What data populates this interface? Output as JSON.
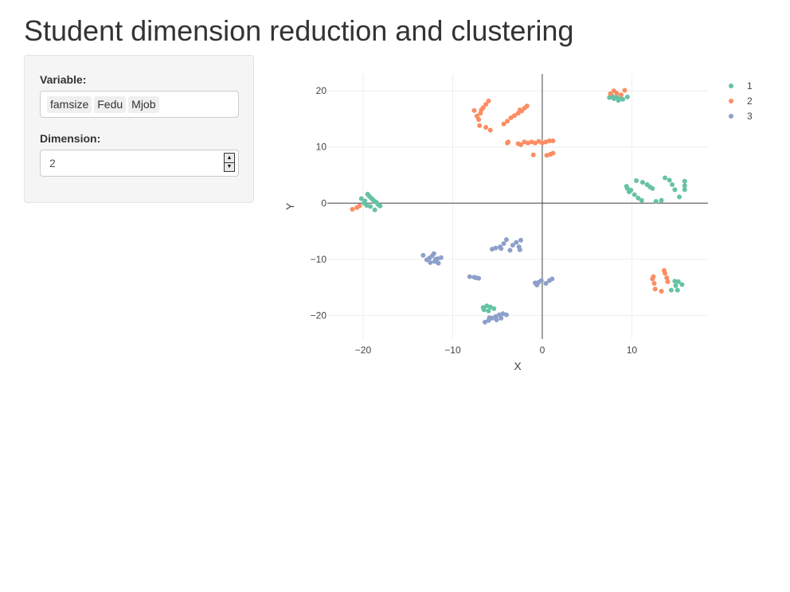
{
  "page": {
    "title": "Student dimension reduction and clustering"
  },
  "sidebar": {
    "variable_label": "Variable:",
    "variables": [
      "famsize",
      "Fedu",
      "Mjob"
    ],
    "dimension_label": "Dimension:",
    "dimension_value": "2",
    "spin_up_icon": "up-arrow-icon",
    "spin_down_icon": "down-arrow-icon"
  },
  "chart_data": {
    "type": "scatter",
    "xlabel": "X",
    "ylabel": "Y",
    "xlim": [
      -24,
      18.5
    ],
    "ylim": [
      -24.2,
      23
    ],
    "xticks": [
      -20,
      -10,
      0,
      10
    ],
    "xtick_labels": [
      "−20",
      "−10",
      "0",
      "10"
    ],
    "yticks": [
      -20,
      -10,
      0,
      10,
      20
    ],
    "ytick_labels": [
      "−20",
      "−10",
      "0",
      "10",
      "20"
    ],
    "grid": true,
    "zeroline": true,
    "legend": "top-right",
    "series": [
      {
        "name": "1",
        "color": "#66c2a5",
        "points": [
          [
            -20.2,
            0.8
          ],
          [
            -19.8,
            0.4
          ],
          [
            -19.5,
            1.6
          ],
          [
            -19.3,
            1.2
          ],
          [
            -19.1,
            0.9
          ],
          [
            -18.9,
            0.6
          ],
          [
            -18.7,
            0.3
          ],
          [
            -18.5,
            0.1
          ],
          [
            -18.3,
            -0.3
          ],
          [
            -19.6,
            -0.4
          ],
          [
            -19.2,
            -0.6
          ],
          [
            -18.7,
            -1.2
          ],
          [
            -19.9,
            0.0
          ],
          [
            -18.1,
            -0.5
          ],
          [
            7.5,
            18.8
          ],
          [
            8,
            18.6
          ],
          [
            8.5,
            18.3
          ],
          [
            9,
            18.5
          ],
          [
            9.5,
            18.9
          ],
          [
            7.8,
            19.1
          ],
          [
            8.3,
            18.9
          ],
          [
            8.8,
            18.7
          ],
          [
            9.5,
            2.6
          ],
          [
            9.9,
            2.3
          ],
          [
            10.3,
            1.5
          ],
          [
            10.7,
            0.9
          ],
          [
            11.1,
            0.5
          ],
          [
            10.5,
            4.0
          ],
          [
            11.2,
            3.7
          ],
          [
            11.7,
            3.3
          ],
          [
            12,
            2.9
          ],
          [
            12.3,
            2.6
          ],
          [
            12.7,
            0.3
          ],
          [
            13.3,
            0.5
          ],
          [
            13.7,
            4.5
          ],
          [
            14.2,
            4.1
          ],
          [
            14.5,
            3.3
          ],
          [
            14.8,
            2.4
          ],
          [
            15.3,
            1.1
          ],
          [
            15.9,
            3.9
          ],
          [
            15.9,
            3.1
          ],
          [
            15.9,
            2.4
          ],
          [
            9.4,
            3.0
          ],
          [
            9.7,
            2.0
          ],
          [
            14.4,
            -15.5
          ],
          [
            14.9,
            -14.7
          ],
          [
            15.2,
            -14.0
          ],
          [
            15.6,
            -14.5
          ],
          [
            15.1,
            -15.5
          ],
          [
            14.8,
            -13.9
          ],
          [
            -6.5,
            -19.0
          ],
          [
            -6.2,
            -18.3
          ],
          [
            -5.8,
            -18.5
          ],
          [
            -5.4,
            -18.8
          ],
          [
            -6.6,
            -18.6
          ],
          [
            -6.0,
            -19.2
          ]
        ]
      },
      {
        "name": "2",
        "color": "#fc8d62",
        "points": [
          [
            -21.2,
            -1.1
          ],
          [
            -20.7,
            -0.8
          ],
          [
            -20.4,
            -0.5
          ],
          [
            -7.6,
            16.5
          ],
          [
            -7.3,
            15.5
          ],
          [
            -7.1,
            14.9
          ],
          [
            -6.8,
            16.6
          ],
          [
            -6.6,
            17.0
          ],
          [
            -6.3,
            17.6
          ],
          [
            -6.0,
            18.2
          ],
          [
            -6.9,
            16.0
          ],
          [
            -7.0,
            13.8
          ],
          [
            -6.3,
            13.5
          ],
          [
            -5.8,
            13.0
          ],
          [
            -4.3,
            14.1
          ],
          [
            -3.9,
            14.6
          ],
          [
            -3.5,
            15.2
          ],
          [
            -3.1,
            15.6
          ],
          [
            -2.7,
            16.0
          ],
          [
            -2.3,
            16.4
          ],
          [
            -2.0,
            16.9
          ],
          [
            -1.7,
            17.3
          ],
          [
            -2.5,
            16.6
          ],
          [
            -3.8,
            10.9
          ],
          [
            -2.7,
            10.6
          ],
          [
            -2.0,
            10.9
          ],
          [
            -1.6,
            10.7
          ],
          [
            -1.2,
            10.9
          ],
          [
            -0.8,
            10.7
          ],
          [
            -0.4,
            11.0
          ],
          [
            0.0,
            10.7
          ],
          [
            0.4,
            10.9
          ],
          [
            0.8,
            11.1
          ],
          [
            1.2,
            11.1
          ],
          [
            -1.0,
            8.6
          ],
          [
            0.5,
            8.5
          ],
          [
            0.9,
            8.7
          ],
          [
            1.2,
            8.9
          ],
          [
            -3.9,
            10.7
          ],
          [
            -2.4,
            10.4
          ],
          [
            7.6,
            19.5
          ],
          [
            8.3,
            19.6
          ],
          [
            8.8,
            19.3
          ],
          [
            9.2,
            20.1
          ],
          [
            8.0,
            20.0
          ],
          [
            12.3,
            -13.5
          ],
          [
            12.5,
            -14.3
          ],
          [
            12.6,
            -15.3
          ],
          [
            13.3,
            -15.7
          ],
          [
            13.7,
            -12.5
          ],
          [
            13.9,
            -13.3
          ],
          [
            14.0,
            -14.0
          ],
          [
            12.4,
            -13.1
          ],
          [
            13.6,
            -12.0
          ]
        ]
      },
      {
        "name": "3",
        "color": "#8da0cb",
        "points": [
          [
            -13.3,
            -9.3
          ],
          [
            -12.9,
            -10.1
          ],
          [
            -12.6,
            -9.8
          ],
          [
            -12.3,
            -9.4
          ],
          [
            -12.0,
            -10.4
          ],
          [
            -11.6,
            -10.7
          ],
          [
            -11.3,
            -9.7
          ],
          [
            -11.7,
            -9.9
          ],
          [
            -12.1,
            -9.0
          ],
          [
            -12.5,
            -10.6
          ],
          [
            -11.9,
            -10.0
          ],
          [
            -8.1,
            -13.1
          ],
          [
            -7.6,
            -13.2
          ],
          [
            -7.1,
            -13.4
          ],
          [
            -7.4,
            -13.3
          ],
          [
            -5.6,
            -8.2
          ],
          [
            -5.2,
            -8.0
          ],
          [
            -4.7,
            -7.8
          ],
          [
            -4.3,
            -7.2
          ],
          [
            -4.0,
            -6.5
          ],
          [
            -3.6,
            -8.4
          ],
          [
            -3.3,
            -7.5
          ],
          [
            -2.9,
            -7.0
          ],
          [
            -2.6,
            -7.8
          ],
          [
            -2.4,
            -6.6
          ],
          [
            -2.5,
            -8.3
          ],
          [
            -4.6,
            -8.1
          ],
          [
            -0.8,
            -14.2
          ],
          [
            -0.4,
            -14.1
          ],
          [
            -0.1,
            -13.8
          ],
          [
            0.4,
            -14.3
          ],
          [
            0.8,
            -13.8
          ],
          [
            1.1,
            -13.5
          ],
          [
            -0.6,
            -14.6
          ],
          [
            -6.4,
            -21.2
          ],
          [
            -6.0,
            -20.9
          ],
          [
            -5.6,
            -20.5
          ],
          [
            -5.2,
            -20.2
          ],
          [
            -4.8,
            -19.9
          ],
          [
            -4.4,
            -19.7
          ],
          [
            -4.0,
            -19.9
          ],
          [
            -5.9,
            -20.4
          ],
          [
            -5.1,
            -20.8
          ],
          [
            -4.6,
            -20.5
          ]
        ]
      }
    ]
  }
}
